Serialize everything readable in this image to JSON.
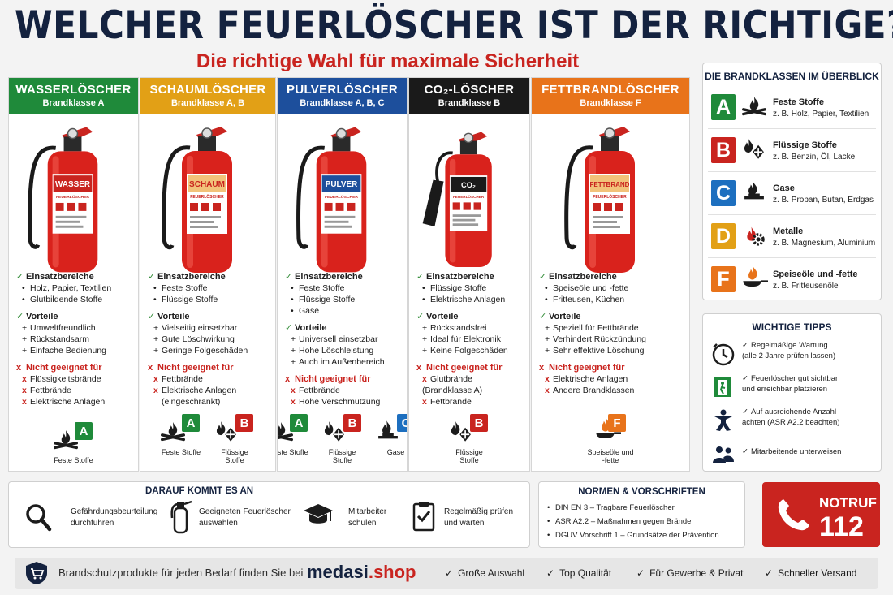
{
  "header": {
    "title": "WELCHER FEUERLÖSCHER IST DER RICHTIGE?",
    "subtitle": "Die richtige Wahl für maximale Sicherheit"
  },
  "colors": {
    "wasser": "#1f8a3a",
    "schaum": "#e2a016",
    "pulver": "#1d4f9c",
    "co2": "#1a1a1a",
    "fett": "#e8731a",
    "red": "#c9241f",
    "navy": "#14223f"
  },
  "cards": [
    {
      "title": "WASSERLÖSCHER",
      "subtitle": "Brandklasse A",
      "label_main": "WASSER",
      "label_sub": "FEUERLÖSCHER",
      "einsatz_h": "Einsatzbereiche",
      "einsatz": [
        "Holz, Papier, Textilien",
        "Glutbildende Stoffe"
      ],
      "vorteile_h": "Vorteile",
      "vorteile": [
        "Umweltfreundlich",
        "Rückstandsarm",
        "Einfache Bedienung"
      ],
      "nicht_h": "Nicht geeignet für",
      "nicht": [
        "Flüssigkeitsbrände",
        "Fettbrände",
        "Elektrische Anlagen"
      ],
      "foot": [
        {
          "letter": "A",
          "label": "Feste Stoffe",
          "icon": "fire-wood-icon"
        }
      ]
    },
    {
      "title": "SCHAUMLÖSCHER",
      "subtitle": "Brandklasse A, B",
      "label_main": "SCHAUM",
      "label_sub": "FEUERLÖSCHER",
      "einsatz_h": "Einsatzbereiche",
      "einsatz": [
        "Feste Stoffe",
        "Flüssige Stoffe"
      ],
      "vorteile_h": "Vorteile",
      "vorteile": [
        "Vielseitig einsetzbar",
        "Gute Löschwirkung",
        "Geringe Folgeschäden"
      ],
      "nicht_h": "Nicht geeignet für",
      "nicht": [
        "Fettbrände",
        "Elektrische Anlagen",
        "(eingeschränkt)"
      ],
      "foot": [
        {
          "letter": "A",
          "label": "Feste Stoffe",
          "icon": "fire-wood-icon"
        },
        {
          "letter": "B",
          "label": "Flüssige Stoffe",
          "icon": "fire-liquid-icon"
        }
      ]
    },
    {
      "title": "PULVERLÖSCHER",
      "subtitle": "Brandklasse A, B, C",
      "label_main": "PULVER",
      "label_sub": "FEUERLÖSCHER",
      "einsatz_h": "Einsatzbereiche",
      "einsatz": [
        "Feste Stoffe",
        "Flüssige Stoffe",
        "Gase"
      ],
      "vorteile_h": "Vorteile",
      "vorteile": [
        "Universell einsetzbar",
        "Hohe Löschleistung",
        "Auch im Außenbereich"
      ],
      "nicht_h": "Nicht geeignet für",
      "nicht": [
        "Fettbrände",
        "Hohe Verschmutzung"
      ],
      "foot": [
        {
          "letter": "A",
          "label": "Feste Stoffe",
          "icon": "fire-wood-icon"
        },
        {
          "letter": "B",
          "label": "Flüssige Stoffe",
          "icon": "fire-liquid-icon"
        },
        {
          "letter": "C",
          "label": "Gase",
          "icon": "fire-gas-icon"
        }
      ]
    },
    {
      "title": "CO₂-LÖSCHER",
      "subtitle": "Brandklasse B",
      "label_main": "CO₂",
      "label_sub": "FEUERLÖSCHER",
      "einsatz_h": "Einsatzbereiche",
      "einsatz": [
        "Flüssige Stoffe",
        "Elektrische Anlagen"
      ],
      "vorteile_h": "Vorteile",
      "vorteile": [
        "Rückstandsfrei",
        "Ideal für Elektronik",
        "Keine Folgeschäden"
      ],
      "nicht_h": "Nicht geeignet für",
      "nicht": [
        "Glutbrände (Brandklasse A)",
        "Fettbrände"
      ],
      "foot": [
        {
          "letter": "B",
          "label": "Flüssige Stoffe",
          "icon": "fire-liquid-icon"
        }
      ]
    },
    {
      "title": "FETTBRANDLÖSCHER",
      "subtitle": "Brandklasse F",
      "label_main": "FETTBRAND",
      "label_sub": "FEUERLÖSCHER",
      "einsatz_h": "Einsatzbereiche",
      "einsatz": [
        "Speiseöle und -fette",
        "Fritteusen, Küchen"
      ],
      "vorteile_h": "Vorteile",
      "vorteile": [
        "Speziell für Fettbrände",
        "Verhindert Rückzündung",
        "Sehr effektive Löschung"
      ],
      "nicht_h": "Nicht geeignet für",
      "nicht": [
        "Elektrische Anlagen",
        "Andere Brandklassen"
      ],
      "foot": [
        {
          "letter": "F",
          "label": "Speiseöle und -fette",
          "icon": "fire-pan-icon"
        }
      ]
    }
  ],
  "brandklassen": {
    "title": "DIE BRANDKLASSEN IM ÜBERBLICK",
    "items": [
      {
        "letter": "A",
        "name": "Feste Stoffe",
        "example": "z. B. Holz, Papier, Textilien",
        "color": "#1f8a3a"
      },
      {
        "letter": "B",
        "name": "Flüssige Stoffe",
        "example": "z. B. Benzin, Öl, Lacke",
        "color": "#c9241f"
      },
      {
        "letter": "C",
        "name": "Gase",
        "example": "z. B. Propan, Butan, Erdgas",
        "color": "#1d6fbf"
      },
      {
        "letter": "D",
        "name": "Metalle",
        "example": "z. B. Magnesium, Aluminium",
        "color": "#e2a016"
      },
      {
        "letter": "F",
        "name": "Speiseöle und -fette",
        "example": "z. B. Fritteusenöle",
        "color": "#e8731a"
      }
    ]
  },
  "tipps": {
    "title": "WICHTIGE TIPPS",
    "items": [
      {
        "line1": "Regelmäßige Wartung",
        "line2": "(alle 2 Jahre prüfen lassen)",
        "icon": "clock-icon"
      },
      {
        "line1": "Feuerlöscher gut sichtbar",
        "line2": "und erreichbar platzieren",
        "icon": "exit-door-icon"
      },
      {
        "line1": "Auf ausreichende Anzahl",
        "line2": "achten (ASR A2.2 beachten)",
        "icon": "person-icon"
      },
      {
        "line1": "Mitarbeitende unterweisen",
        "line2": "",
        "icon": "group-icon"
      }
    ]
  },
  "darauf": {
    "title": "DARAUF KOMMT ES AN",
    "items": [
      {
        "line1": "Gefährdungsbeurteilung",
        "line2": "durchführen"
      },
      {
        "line1": "Geeigneten Feuerlöscher",
        "line2": "auswählen"
      },
      {
        "line1": "Mitarbeiter",
        "line2": "schulen"
      },
      {
        "line1": "Regelmäßig prüfen",
        "line2": "und warten"
      }
    ]
  },
  "normen": {
    "title": "NORMEN & VORSCHRIFTEN",
    "items": [
      "DIN EN 3 – Tragbare Feuerlöscher",
      "ASR A2.2 – Maßnahmen gegen Brände",
      "DGUV Vorschrift 1 – Grundsätze der Prävention"
    ]
  },
  "notruf": {
    "label": "NOTRUF",
    "number": "112"
  },
  "footer": {
    "text": "Brandschutzprodukte für jeden Bedarf finden Sie bei",
    "brand_main": "medasi",
    "brand_dot": ".shop",
    "features": [
      "Große Auswahl",
      "Top Qualität",
      "Für Gewerbe & Privat",
      "Schneller Versand"
    ]
  }
}
